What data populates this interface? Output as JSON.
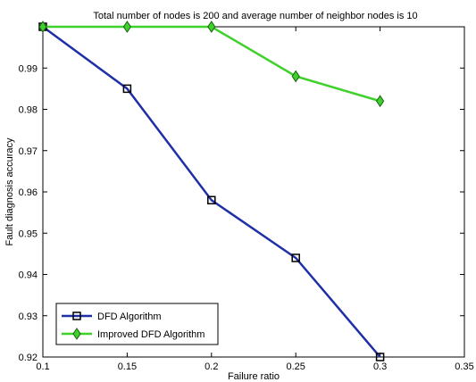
{
  "chart_data": {
    "type": "line",
    "title": "Total number of nodes is 200 and average number of neighbor nodes is 10",
    "xlabel": "Failure ratio",
    "ylabel": "Fault diagnosis accuracy",
    "xlim": [
      0.1,
      0.35
    ],
    "ylim": [
      0.92,
      1.0
    ],
    "xticks": [
      "0.1",
      "0.15",
      "0.2",
      "0.25",
      "0.3",
      "0.35"
    ],
    "yticks": [
      "0.92",
      "0.93",
      "0.94",
      "0.95",
      "0.96",
      "0.97",
      "0.98",
      "0.99"
    ],
    "grid": false,
    "legend_position": "bottom-left",
    "series": [
      {
        "name": "DFD Algorithm",
        "color": "#1f2fa8",
        "marker": "square",
        "x": [
          0.1,
          0.15,
          0.2,
          0.25,
          0.3
        ],
        "y": [
          1.0,
          0.985,
          0.958,
          0.944,
          0.92
        ]
      },
      {
        "name": "Improved DFD Algorithm",
        "color": "#3fd12b",
        "marker": "diamond",
        "x": [
          0.1,
          0.15,
          0.2,
          0.25,
          0.3
        ],
        "y": [
          1.0,
          1.0,
          1.0,
          0.988,
          0.982
        ]
      }
    ]
  }
}
